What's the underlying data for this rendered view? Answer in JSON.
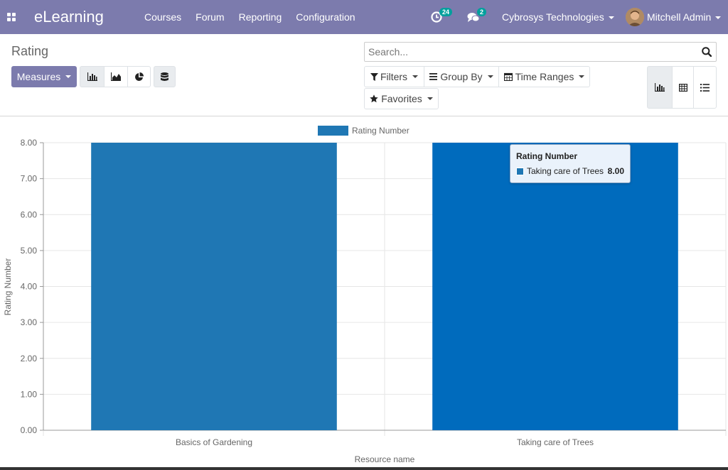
{
  "navbar": {
    "app_name": "eLearning",
    "menu": [
      "Courses",
      "Forum",
      "Reporting",
      "Configuration"
    ],
    "activity_badge": "24",
    "messages_badge": "2",
    "company": "Cybrosys Technologies",
    "user": "Mitchell Admin",
    "apps_icon": "grid-icon",
    "activity_icon": "clock-icon",
    "messages_icon": "chat-icon",
    "bg_color": "#7c7bad"
  },
  "control_panel": {
    "title": "Rating",
    "measures_label": "Measures",
    "search_placeholder": "Search...",
    "filters_label": "Filters",
    "group_by_label": "Group By",
    "time_ranges_label": "Time Ranges",
    "favorites_label": "Favorites",
    "chart_type_icons": [
      "bar-chart-icon",
      "line-chart-icon",
      "pie-chart-icon",
      "database-icon"
    ],
    "view_icons": [
      "graph-view-icon",
      "pivot-view-icon",
      "list-view-icon"
    ]
  },
  "chart_data": {
    "type": "bar",
    "categories": [
      "Basics of Gardening",
      "Taking care of Trees"
    ],
    "series": [
      {
        "name": "Rating Number",
        "values": [
          8.0,
          8.0
        ],
        "color": "#1f77b4",
        "hover_color": "#006bbd"
      }
    ],
    "xlabel": "Resource name",
    "ylabel": "Rating Number",
    "ylim": [
      0,
      8
    ],
    "yticks": [
      "0.00",
      "1.00",
      "2.00",
      "3.00",
      "4.00",
      "5.00",
      "6.00",
      "7.00",
      "8.00"
    ],
    "legend": "top-center",
    "grid": true,
    "tooltip": {
      "title": "Rating Number",
      "label": "Taking care of Trees",
      "value": "8.00"
    }
  }
}
